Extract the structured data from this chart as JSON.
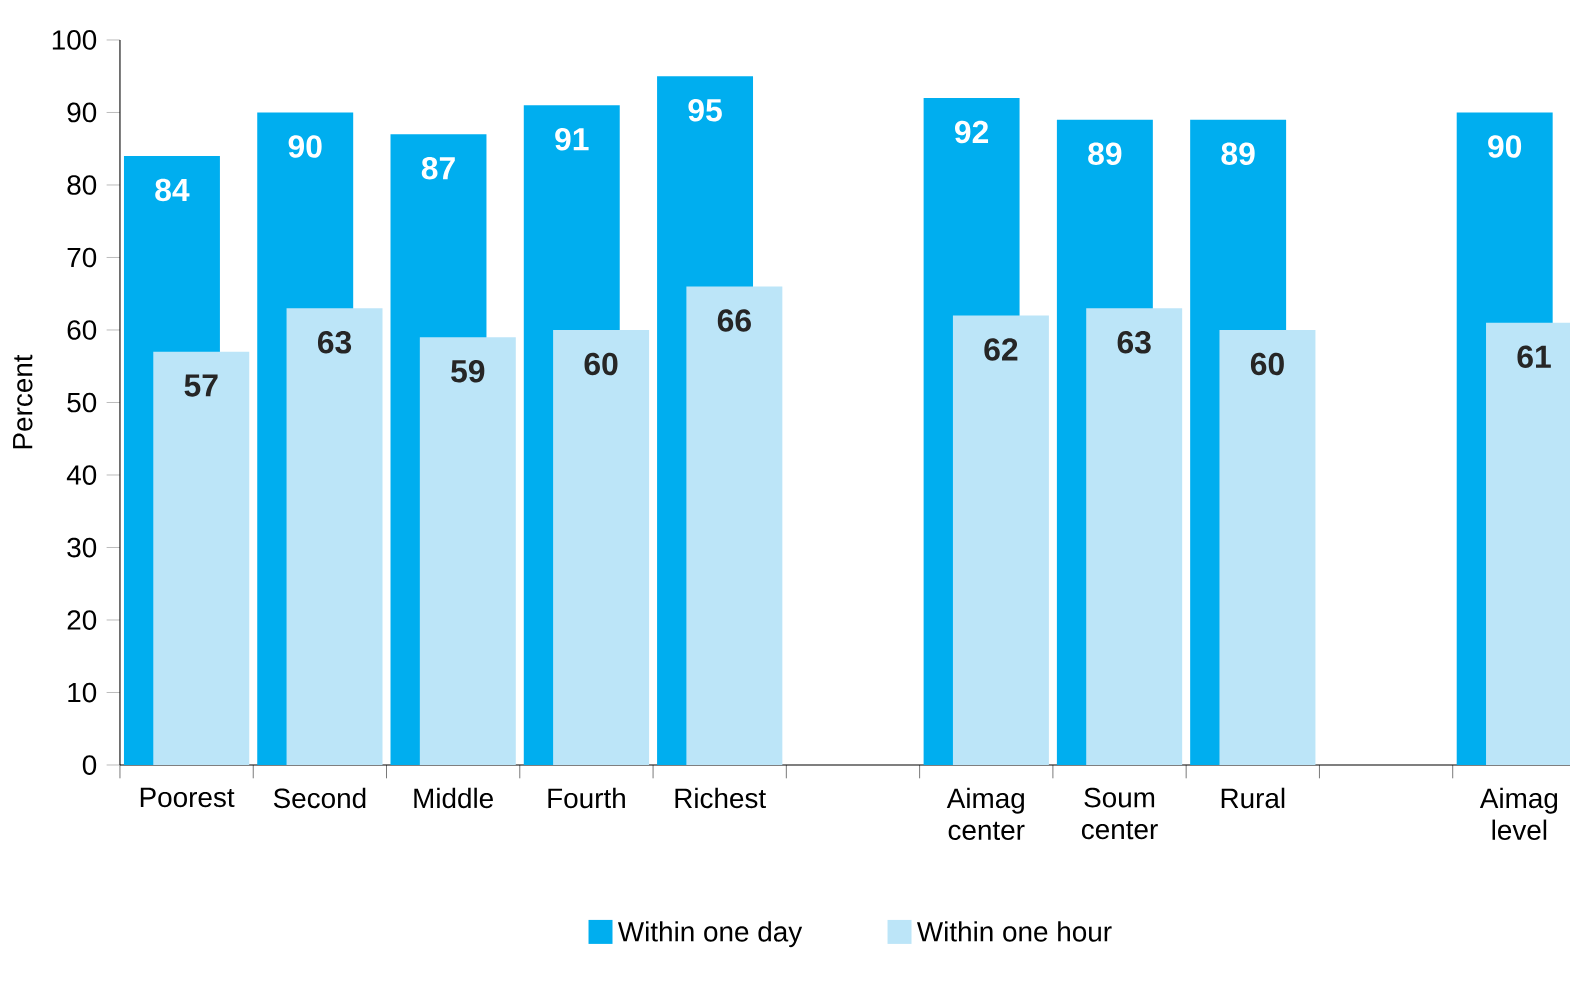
{
  "chart_data": {
    "type": "bar",
    "ylabel": "Percent",
    "categories": [
      "Poorest",
      "Second",
      "Middle",
      "Fourth",
      "Richest",
      null,
      "Aimag center",
      "Soum center",
      "Rural",
      null,
      "Aimag level"
    ],
    "series": [
      {
        "name": "Within one day",
        "color": "#00aeef",
        "values": [
          84,
          90,
          87,
          91,
          95,
          null,
          92,
          89,
          89,
          null,
          90
        ]
      },
      {
        "name": "Within one hour",
        "color": "#bce5f8",
        "values": [
          57,
          63,
          59,
          60,
          66,
          null,
          62,
          63,
          60,
          null,
          61
        ]
      }
    ],
    "ylim": [
      0,
      100
    ],
    "yticks": [
      0,
      10,
      20,
      30,
      40,
      50,
      60,
      70,
      80,
      90,
      100
    ],
    "data_labels": true,
    "legend": "bottom",
    "grid": false
  }
}
